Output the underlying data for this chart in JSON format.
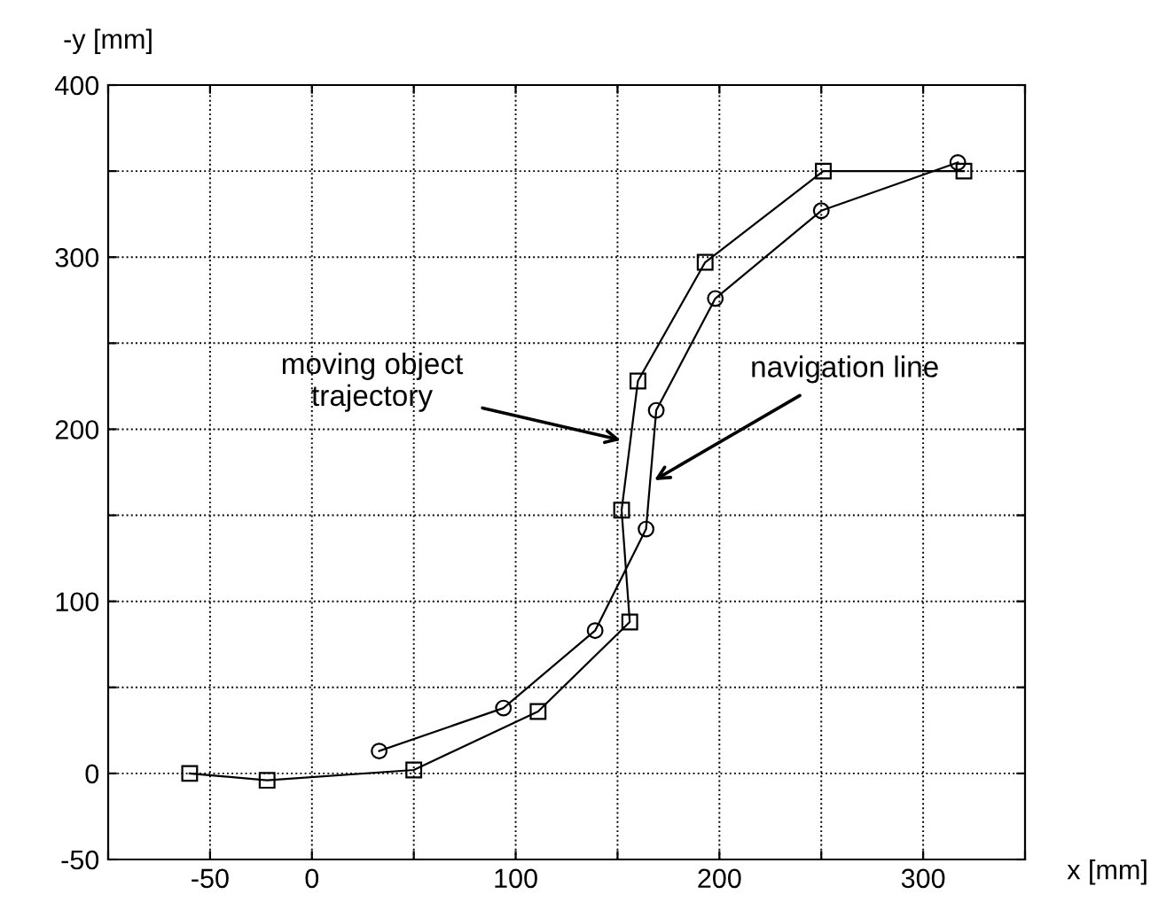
{
  "chart_data": {
    "type": "line",
    "xlabel": "x [mm]",
    "ylabel": "-y [mm]",
    "xlim": [
      -100,
      350
    ],
    "ylim": [
      -50,
      400
    ],
    "xticks": [
      {
        "value": -100,
        "label": null
      },
      -50,
      0,
      {
        "value": 50,
        "label": null
      },
      100,
      {
        "value": 150,
        "label": null
      },
      200,
      {
        "value": 250,
        "label": null
      },
      300,
      {
        "value": 350,
        "label": null
      }
    ],
    "yticks": [
      -50,
      0,
      {
        "value": 50,
        "label": null
      },
      100,
      {
        "value": 150,
        "label": null
      },
      200,
      {
        "value": 250,
        "label": null
      },
      300,
      {
        "value": 350,
        "label": null
      },
      400
    ],
    "grid": true,
    "line_style": "solid",
    "series": [
      {
        "color": "#000000",
        "marker": "square",
        "x": [
          -60,
          -22,
          50,
          111,
          156,
          152,
          160,
          193,
          251,
          320
        ],
        "values": [
          0,
          -4,
          2,
          36,
          88,
          153,
          228,
          297,
          350,
          350
        ]
      },
      {
        "color": "#000000",
        "marker": "circle",
        "x": [
          33,
          94,
          139,
          164,
          169,
          198,
          250,
          317
        ],
        "values": [
          13,
          38,
          83,
          142,
          211,
          276,
          327,
          355
        ]
      }
    ],
    "annotations": [
      {
        "text": "moving object\ntrajectory",
        "x": 154,
        "y": 193
      },
      {
        "text": "navigation line",
        "x": 166,
        "y": 169
      }
    ]
  }
}
